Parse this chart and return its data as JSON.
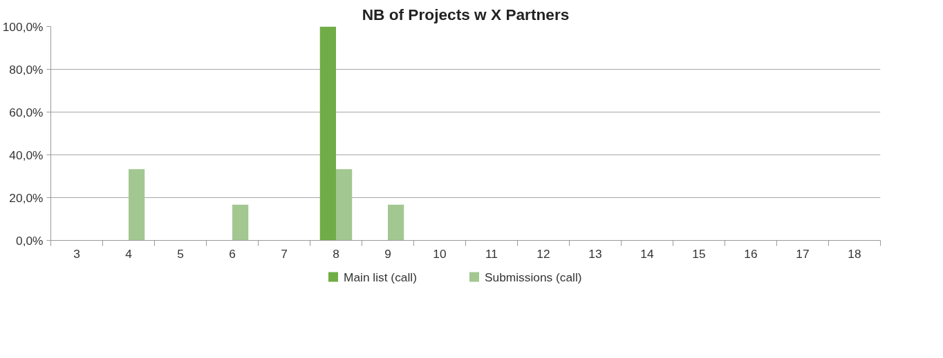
{
  "chart_data": {
    "type": "bar",
    "title": "NB of Projects w X Partners",
    "categories": [
      "3",
      "4",
      "5",
      "6",
      "7",
      "8",
      "9",
      "10",
      "11",
      "12",
      "13",
      "14",
      "15",
      "16",
      "17",
      "18"
    ],
    "series": [
      {
        "name": "Main list (call)",
        "color": "#70ad47",
        "values": [
          0,
          0,
          0,
          0,
          0,
          100,
          0,
          0,
          0,
          0,
          0,
          0,
          0,
          0,
          0,
          0
        ]
      },
      {
        "name": "Submissions (call)",
        "color": "#a2c791",
        "values": [
          0,
          33.3,
          0,
          16.7,
          0,
          33.3,
          16.7,
          0,
          0,
          0,
          0,
          0,
          0,
          0,
          0,
          0
        ]
      }
    ],
    "ylim": [
      0,
      100
    ],
    "yticks": [
      {
        "value": 0,
        "label": "0,0%"
      },
      {
        "value": 20,
        "label": "20,0%"
      },
      {
        "value": 40,
        "label": "40,0%"
      },
      {
        "value": 60,
        "label": "60,0%"
      },
      {
        "value": 80,
        "label": "80,0%"
      },
      {
        "value": 100,
        "label": "100,0%"
      }
    ],
    "grid": "y",
    "legend": "bottom"
  }
}
